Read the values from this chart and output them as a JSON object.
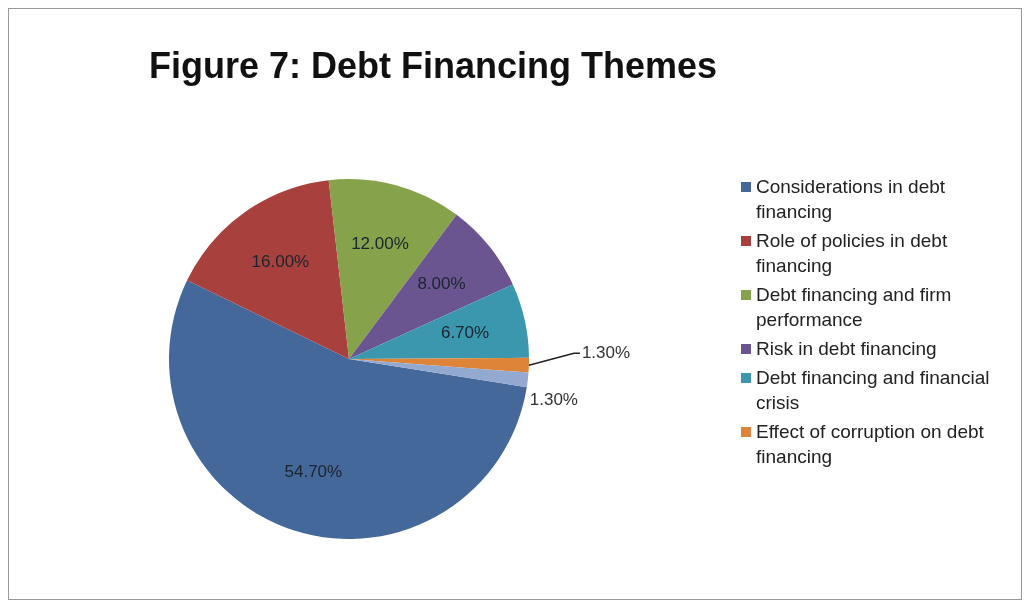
{
  "chart_data": {
    "type": "pie",
    "title": "Figure 7: Debt Financing Themes",
    "categories": [
      "Considerations in debt financing",
      "Role of policies in debt financing",
      "Debt financing and firm performance",
      "Risk in debt financing",
      "Debt financing and financial crisis",
      "Effect of corruption on debt financing",
      null
    ],
    "values": [
      54.7,
      16.0,
      12.0,
      8.0,
      6.7,
      1.3,
      1.3
    ],
    "value_labels": [
      "54.70%",
      "16.00%",
      "12.00%",
      "8.00%",
      "6.70%",
      "1.30%",
      "1.30%"
    ],
    "colors": [
      "#44689a",
      "#a8413e",
      "#86a24a",
      "#6b5590",
      "#3b97ae",
      "#dd8438",
      "#93a9d0"
    ],
    "legend": "right"
  }
}
